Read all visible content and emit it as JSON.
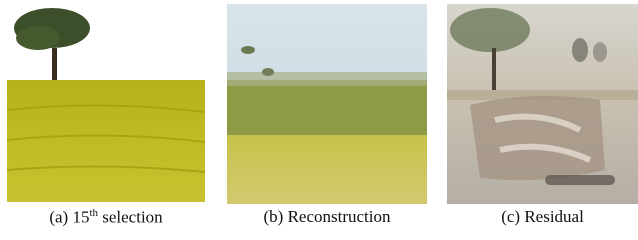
{
  "panels": [
    {
      "label": "(a)",
      "number": "15",
      "superscript": "th",
      "caption": "selection"
    },
    {
      "label": "(b)",
      "caption": "Reconstruction"
    },
    {
      "label": "(c)",
      "caption": "Residual"
    }
  ]
}
